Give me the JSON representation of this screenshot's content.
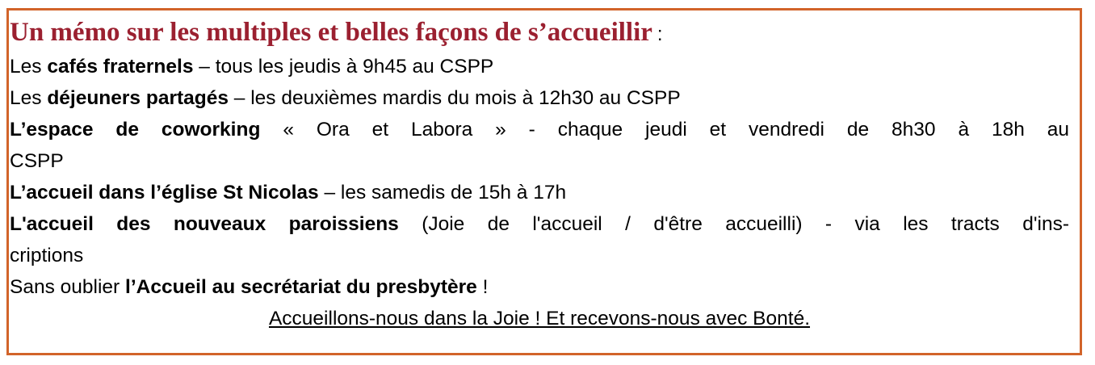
{
  "title": "Un mémo sur les multiples et belles façons de s’accueillir",
  "title_suffix": ":",
  "items": [
    {
      "pre": "Les ",
      "bold": "cafés fraternels",
      "post": " – tous les jeudis à 9h45 au CSPP"
    },
    {
      "pre": "Les ",
      "bold": "déjeuners partagés",
      "post": " – les deuxièmes mardis du mois à 12h30 au CSPP"
    },
    {
      "pre": "",
      "bold": "L’espace de coworking",
      "post": " « Ora et Labora » - chaque jeudi et vendredi de 8h30 à 18h au",
      "cont": "CSPP"
    },
    {
      "pre": "",
      "bold": "L’accueil dans l’église St Nicolas",
      "post": " – les samedis de 15h à 17h"
    },
    {
      "pre": "",
      "bold": "L'accueil des nouveaux paroissiens",
      "post": " (Joie de l'accueil / d'être accueilli) - via les tracts d'ins-",
      "cont": "criptions"
    },
    {
      "pre": "Sans oublier ",
      "bold": "l’Accueil au secrétariat du presbytère",
      "post": " !"
    }
  ],
  "closing": "Accueillons-nous dans la Joie ! Et recevons-nous avec Bonté.",
  "colors": {
    "border": "#d2642a",
    "title": "#9b2030"
  }
}
